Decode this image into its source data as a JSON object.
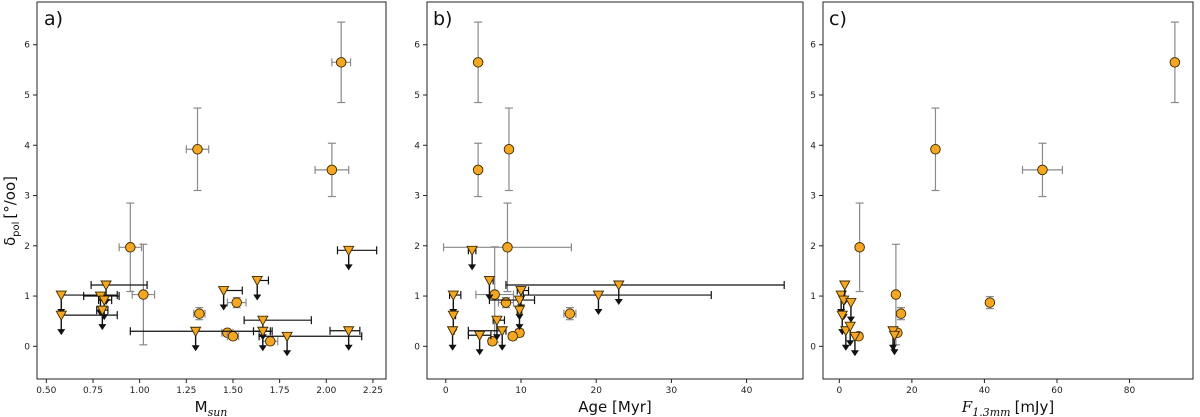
{
  "figure": {
    "y_label_main": "δ",
    "y_label_sub": "pol",
    "y_label_unit": "[°/oo]"
  },
  "colors": {
    "marker_fill": "#f5a623",
    "marker_edge": "#3a2a00",
    "errorbar_detection": "#8a8a8a",
    "errorbar_limit": "#111111"
  },
  "chart_data": [
    {
      "type": "scatter",
      "panel_label": "a)",
      "xlabel_main": "M",
      "xlabel_sub": "sun",
      "xlim": [
        0.45,
        2.32
      ],
      "ylim": [
        -0.65,
        6.85
      ],
      "xticks": [
        0.5,
        0.75,
        1.0,
        1.25,
        1.5,
        1.75,
        2.0,
        2.25
      ],
      "xtick_labels": [
        "0.50",
        "0.75",
        "1.00",
        "1.25",
        "1.50",
        "1.75",
        "2.00",
        "2.25"
      ],
      "yticks": [
        0,
        1,
        2,
        3,
        4,
        5,
        6
      ],
      "ytick_labels": [
        "0",
        "1",
        "2",
        "3",
        "4",
        "5",
        "6"
      ],
      "detections": [
        {
          "x": 2.08,
          "y": 5.65,
          "xerr": 0.05,
          "yerr": 0.8
        },
        {
          "x": 1.31,
          "y": 3.92,
          "xerr": 0.06,
          "yerr": 0.82
        },
        {
          "x": 2.03,
          "y": 3.51,
          "xerr": 0.09,
          "yerr": 0.53
        },
        {
          "x": 0.95,
          "y": 1.97,
          "xerr": 0.06,
          "yerr": 0.88
        },
        {
          "x": 1.02,
          "y": 1.03,
          "xerr": 0.06,
          "yerr": 1.0
        },
        {
          "x": 1.32,
          "y": 0.65,
          "xerr": 0.03,
          "yerr": 0.12
        },
        {
          "x": 1.52,
          "y": 0.87,
          "xerr": 0.05,
          "yerr": 0.1
        },
        {
          "x": 1.47,
          "y": 0.27,
          "xerr": 0.03,
          "yerr": 0.05
        },
        {
          "x": 1.5,
          "y": 0.2,
          "xerr": 0.03,
          "yerr": 0.05
        },
        {
          "x": 1.7,
          "y": 0.1,
          "xerr": 0.04,
          "yerr": 0.05
        }
      ],
      "upper_limits": [
        {
          "x": 0.58,
          "y": 1.02,
          "xerr_lo": 0.0,
          "xerr_hi": 0.3
        },
        {
          "x": 0.58,
          "y": 0.62,
          "xerr_lo": 0.0,
          "xerr_hi": 0.3
        },
        {
          "x": 0.79,
          "y": 1.0,
          "xerr_lo": 0.09,
          "xerr_hi": 0.1
        },
        {
          "x": 0.82,
          "y": 1.22,
          "xerr_lo": 0.08,
          "xerr_hi": 0.22
        },
        {
          "x": 0.81,
          "y": 0.92,
          "xerr_lo": 0.03,
          "xerr_hi": 0.04
        },
        {
          "x": 0.8,
          "y": 0.72,
          "xerr_lo": 0.03,
          "xerr_hi": 0.03
        },
        {
          "x": 1.3,
          "y": 0.3,
          "xerr_lo": 0.35,
          "xerr_hi": 0.4
        },
        {
          "x": 1.45,
          "y": 1.11,
          "xerr_lo": 0.0,
          "xerr_hi": 0.1
        },
        {
          "x": 1.63,
          "y": 1.31,
          "xerr_lo": 0.0,
          "xerr_hi": 0.06
        },
        {
          "x": 1.66,
          "y": 0.52,
          "xerr_lo": 0.1,
          "xerr_hi": 0.26
        },
        {
          "x": 1.66,
          "y": 0.3,
          "xerr_lo": 0.05,
          "xerr_hi": 0.05
        },
        {
          "x": 1.79,
          "y": 0.2,
          "xerr_lo": 0.15,
          "xerr_hi": 0.4
        },
        {
          "x": 2.12,
          "y": 1.91,
          "xerr_lo": 0.06,
          "xerr_hi": 0.15
        },
        {
          "x": 2.12,
          "y": 0.31,
          "xerr_lo": 0.1,
          "xerr_hi": 0.06
        }
      ]
    },
    {
      "type": "scatter",
      "panel_label": "b)",
      "xlabel_main": "Age [Myr]",
      "xlabel_sub": "",
      "xlim": [
        -2.5,
        47.5
      ],
      "ylim": [
        -0.65,
        6.85
      ],
      "xticks": [
        0,
        10,
        20,
        30,
        40
      ],
      "xtick_labels": [
        "0",
        "10",
        "20",
        "30",
        "40"
      ],
      "yticks": [
        0,
        1,
        2,
        3,
        4,
        5,
        6
      ],
      "ytick_labels": [
        "0",
        "1",
        "2",
        "3",
        "4",
        "5",
        "6"
      ],
      "detections": [
        {
          "x": 4.3,
          "y": 5.65,
          "xerr": 0.0,
          "yerr": 0.8
        },
        {
          "x": 4.3,
          "y": 3.51,
          "xerr": 0.0,
          "yerr": 0.53
        },
        {
          "x": 8.4,
          "y": 3.92,
          "xerr": 0.0,
          "yerr": 0.82
        },
        {
          "x": 8.2,
          "y": 1.97,
          "xerr": 8.5,
          "yerr": 0.88
        },
        {
          "x": 6.5,
          "y": 1.03,
          "xerr": 2.5,
          "yerr": 0.95
        },
        {
          "x": 8.0,
          "y": 0.87,
          "xerr": 1.0,
          "yerr": 0.1
        },
        {
          "x": 16.5,
          "y": 0.65,
          "xerr": 0.8,
          "yerr": 0.12
        },
        {
          "x": 9.8,
          "y": 0.27,
          "xerr": 0.5,
          "yerr": 0.05
        },
        {
          "x": 8.9,
          "y": 0.2,
          "xerr": 0.5,
          "yerr": 0.05
        },
        {
          "x": 6.2,
          "y": 0.1,
          "xerr": 0.5,
          "yerr": 0.05
        }
      ],
      "upper_limits": [
        {
          "x": 1.0,
          "y": 1.02,
          "xerr_lo": 0.5,
          "xerr_hi": 1.0
        },
        {
          "x": 1.0,
          "y": 0.62,
          "xerr_lo": 0.0,
          "xerr_hi": 0.3
        },
        {
          "x": 0.9,
          "y": 0.31,
          "xerr_lo": 0.0,
          "xerr_hi": 0.2
        },
        {
          "x": 3.5,
          "y": 1.91,
          "xerr_lo": 0.5,
          "xerr_hi": 0.5
        },
        {
          "x": 5.8,
          "y": 1.31,
          "xerr_lo": 0.0,
          "xerr_hi": 0.5
        },
        {
          "x": 6.8,
          "y": 0.52,
          "xerr_lo": 0.5,
          "xerr_hi": 1.0
        },
        {
          "x": 7.5,
          "y": 0.31,
          "xerr_lo": 4.5,
          "xerr_hi": 0.5
        },
        {
          "x": 4.5,
          "y": 0.22,
          "xerr_lo": 1.5,
          "xerr_hi": 1.5
        },
        {
          "x": 10.0,
          "y": 1.11,
          "xerr_lo": 0.5,
          "xerr_hi": 1.0
        },
        {
          "x": 9.8,
          "y": 0.92,
          "xerr_lo": 4.0,
          "xerr_hi": 2.0
        },
        {
          "x": 9.8,
          "y": 0.72,
          "xerr_lo": 0.3,
          "xerr_hi": 0.3
        },
        {
          "x": 20.3,
          "y": 1.02,
          "xerr_lo": 10.0,
          "xerr_hi": 15.0
        },
        {
          "x": 23.0,
          "y": 1.22,
          "xerr_lo": 15.0,
          "xerr_hi": 22.0
        }
      ]
    },
    {
      "type": "scatter",
      "panel_label": "c)",
      "xlabel_main": "F",
      "xlabel_sub": "1.3mm",
      "xlabel_unit": "[mJy]",
      "xlim": [
        -4.5,
        97.5
      ],
      "ylim": [
        -0.65,
        6.85
      ],
      "xticks": [
        0,
        20,
        40,
        60,
        80
      ],
      "xtick_labels": [
        "0",
        "20",
        "40",
        "60",
        "80"
      ],
      "yticks": [
        0,
        1,
        2,
        3,
        4,
        5,
        6
      ],
      "ytick_labels": [
        "0",
        "1",
        "2",
        "3",
        "4",
        "5",
        "6"
      ],
      "detections": [
        {
          "x": 92.5,
          "y": 5.65,
          "xerr": 0.0,
          "yerr": 0.8
        },
        {
          "x": 26.5,
          "y": 3.92,
          "xerr": 0.0,
          "yerr": 0.82
        },
        {
          "x": 56.0,
          "y": 3.51,
          "xerr": 5.5,
          "yerr": 0.53
        },
        {
          "x": 5.6,
          "y": 1.97,
          "xerr": 0.0,
          "yerr": 0.88
        },
        {
          "x": 15.6,
          "y": 1.03,
          "xerr": 0.0,
          "yerr": 1.0
        },
        {
          "x": 41.5,
          "y": 0.87,
          "xerr": 0.0,
          "yerr": 0.12
        },
        {
          "x": 17.0,
          "y": 0.65,
          "xerr": 0.0,
          "yerr": 0.12
        },
        {
          "x": 16.0,
          "y": 0.27,
          "xerr": 0.0,
          "yerr": 0.05
        },
        {
          "x": 5.3,
          "y": 0.2,
          "xerr": 0.0,
          "yerr": 0.05
        }
      ],
      "upper_limits": [
        {
          "x": 0.5,
          "y": 1.02,
          "xerr_lo": 0.0,
          "xerr_hi": 0.0
        },
        {
          "x": 1.5,
          "y": 1.22,
          "xerr_lo": 0.0,
          "xerr_hi": 0.0
        },
        {
          "x": 1.2,
          "y": 0.92,
          "xerr_lo": 0.0,
          "xerr_hi": 0.0
        },
        {
          "x": 0.8,
          "y": 0.62,
          "xerr_lo": 0.0,
          "xerr_hi": 0.0
        },
        {
          "x": 1.8,
          "y": 0.31,
          "xerr_lo": 0.0,
          "xerr_hi": 0.0
        },
        {
          "x": 3.2,
          "y": 0.87,
          "xerr_lo": 0.0,
          "xerr_hi": 0.0
        },
        {
          "x": 3.0,
          "y": 0.4,
          "xerr_lo": 0.0,
          "xerr_hi": 0.0
        },
        {
          "x": 4.3,
          "y": 0.2,
          "xerr_lo": 0.0,
          "xerr_hi": 0.0
        },
        {
          "x": 14.8,
          "y": 0.31,
          "xerr_lo": 0.0,
          "xerr_hi": 0.0
        },
        {
          "x": 15.2,
          "y": 0.22,
          "xerr_lo": 0.0,
          "xerr_hi": 0.0
        }
      ]
    }
  ]
}
